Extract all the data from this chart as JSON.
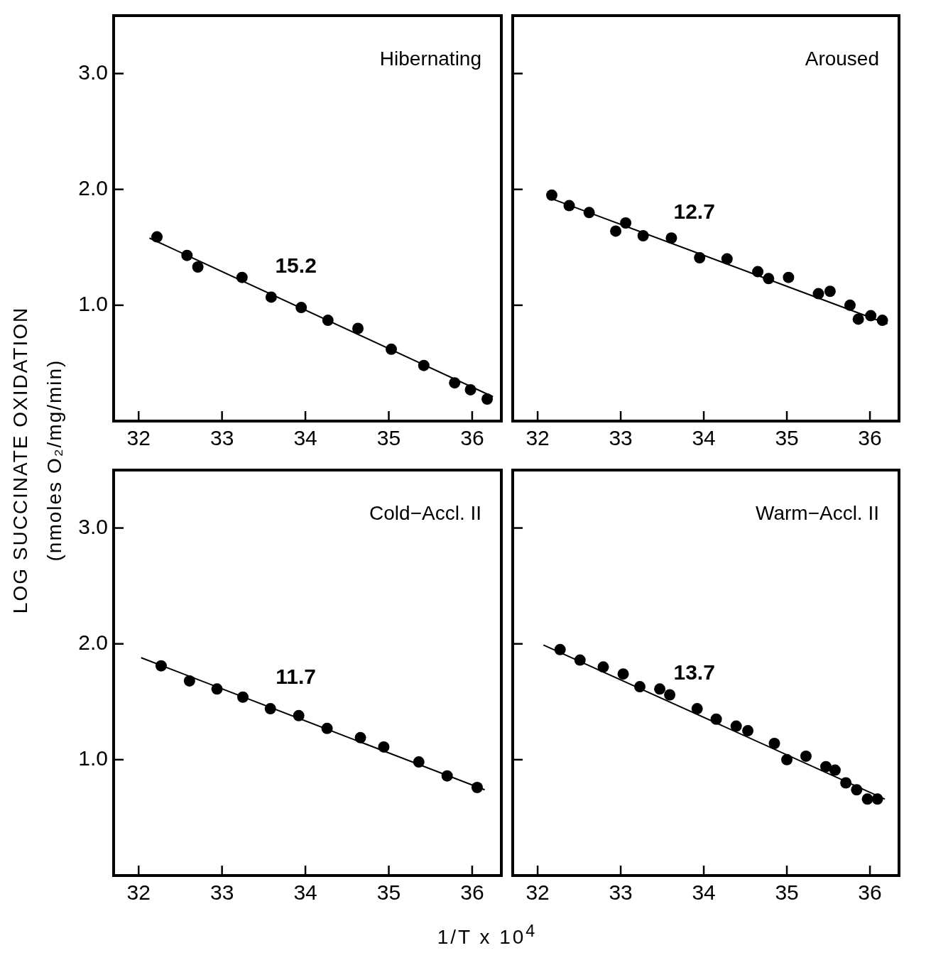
{
  "chart_data": [
    {
      "type": "scatter",
      "title": "Hibernating",
      "ylabel": "LOG SUCCINATE OXIDATION\n(nmoles O₂/mg/min)",
      "xlim": [
        31.7,
        36.35
      ],
      "xticks": [
        32,
        33,
        34,
        35,
        36
      ],
      "ylim": [
        0,
        3.5
      ],
      "yticks": [
        {
          "value": 1,
          "label": "1.0"
        },
        {
          "value": 2,
          "label": "2.0"
        },
        {
          "value": 3,
          "label": "3.0"
        }
      ],
      "marker": "circle",
      "legend": false,
      "grid": false,
      "annotations": [
        "15.2"
      ],
      "series": [
        {
          "color": "#000000",
          "x": [
            32.22,
            32.58,
            32.71,
            33.24,
            33.59,
            33.95,
            34.27,
            34.63,
            35.03,
            35.42,
            35.79,
            35.98,
            36.18
          ],
          "values": [
            1.59,
            1.43,
            1.33,
            1.24,
            1.07,
            0.98,
            0.87,
            0.8,
            0.62,
            0.48,
            0.33,
            0.27,
            0.19
          ]
        },
        {
          "type": "line",
          "color": "#000000",
          "marker": "none",
          "line_style": "solid",
          "x": [
            32.13,
            36.25
          ],
          "values": [
            1.58,
            0.21
          ]
        }
      ]
    },
    {
      "type": "scatter",
      "title": "Aroused",
      "tick_labels": "x",
      "xlim": [
        31.7,
        36.35
      ],
      "xticks": [
        32,
        33,
        34,
        35,
        36
      ],
      "ylim": [
        0,
        3.5
      ],
      "yticks": [
        {
          "value": 1,
          "label": null
        },
        {
          "value": 2,
          "label": null
        },
        {
          "value": 3,
          "label": null
        }
      ],
      "marker": "circle",
      "legend": false,
      "grid": false,
      "annotations": [
        "12.7"
      ],
      "series": [
        {
          "color": "#000000",
          "x": [
            32.17,
            32.38,
            32.62,
            32.94,
            33.06,
            33.27,
            33.61,
            33.95,
            34.28,
            34.65,
            34.78,
            35.02,
            35.38,
            35.52,
            35.76,
            35.86,
            36.01,
            36.15
          ],
          "values": [
            1.95,
            1.86,
            1.8,
            1.64,
            1.71,
            1.6,
            1.58,
            1.41,
            1.4,
            1.29,
            1.23,
            1.24,
            1.1,
            1.12,
            1.0,
            0.88,
            0.91,
            0.87
          ]
        },
        {
          "type": "line",
          "color": "#000000",
          "marker": "none",
          "line_style": "solid",
          "x": [
            32.13,
            36.21
          ],
          "values": [
            1.93,
            0.84
          ]
        }
      ]
    },
    {
      "type": "scatter",
      "title": "Cold−Accl. II",
      "xlabel": "1/T x 10$^{4}$",
      "xlim": [
        31.7,
        36.35
      ],
      "xticks": [
        32,
        33,
        34,
        35,
        36
      ],
      "ylim": [
        0,
        3.5
      ],
      "yticks": [
        {
          "value": 1,
          "label": "1.0"
        },
        {
          "value": 2,
          "label": "2.0"
        },
        {
          "value": 3,
          "label": "3.0"
        }
      ],
      "marker": "circle",
      "legend": false,
      "grid": false,
      "annotations": [
        "11.7"
      ],
      "series": [
        {
          "color": "#000000",
          "x": [
            32.27,
            32.61,
            32.94,
            33.25,
            33.58,
            33.92,
            34.26,
            34.66,
            34.94,
            35.36,
            35.7,
            36.06
          ],
          "values": [
            1.81,
            1.68,
            1.61,
            1.54,
            1.44,
            1.38,
            1.27,
            1.19,
            1.11,
            0.98,
            0.86,
            0.76
          ]
        },
        {
          "type": "line",
          "color": "#000000",
          "marker": "none",
          "line_style": "solid",
          "x": [
            32.03,
            36.15
          ],
          "values": [
            1.88,
            0.74
          ]
        }
      ]
    },
    {
      "type": "scatter",
      "title": "Warm−Accl. II",
      "tick_labels": "x",
      "xlim": [
        31.7,
        36.35
      ],
      "xticks": [
        32,
        33,
        34,
        35,
        36
      ],
      "ylim": [
        0,
        3.5
      ],
      "yticks": [
        {
          "value": 1,
          "label": null
        },
        {
          "value": 2,
          "label": null
        },
        {
          "value": 3,
          "label": null
        }
      ],
      "marker": "circle",
      "legend": false,
      "grid": false,
      "annotations": [
        "13.7"
      ],
      "series": [
        {
          "color": "#000000",
          "x": [
            32.27,
            32.51,
            32.79,
            33.03,
            33.23,
            33.47,
            33.59,
            33.92,
            34.15,
            34.39,
            34.53,
            34.85,
            35.0,
            35.23,
            35.47,
            35.58,
            35.71,
            35.84,
            35.97,
            36.09
          ],
          "values": [
            1.95,
            1.86,
            1.8,
            1.74,
            1.63,
            1.61,
            1.56,
            1.44,
            1.35,
            1.29,
            1.25,
            1.14,
            1.0,
            1.03,
            0.94,
            0.91,
            0.8,
            0.74,
            0.66,
            0.66
          ]
        },
        {
          "type": "line",
          "color": "#000000",
          "marker": "none",
          "line_style": "solid",
          "x": [
            32.07,
            36.18
          ],
          "values": [
            1.99,
            0.66
          ]
        }
      ]
    }
  ]
}
